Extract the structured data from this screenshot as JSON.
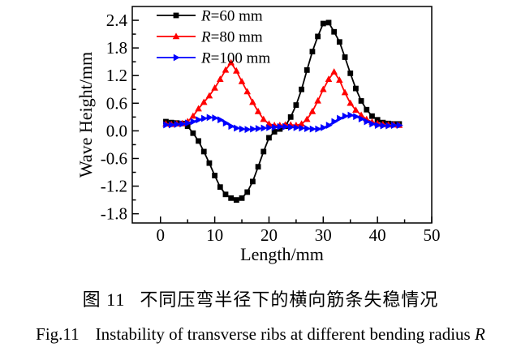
{
  "figure": {
    "caption_cn": {
      "prefix": "图 11",
      "text": "不同压弯半径下的横向筋条失稳情况"
    },
    "caption_en": {
      "prefix": "Fig.11",
      "text": "Instability of transverse ribs at different bending radius",
      "suffix_italic": "R"
    }
  },
  "chart_data": {
    "type": "line",
    "title": "",
    "xlabel": "Length/mm",
    "ylabel": "Wave Height/mm",
    "xlim": [
      -5.2,
      50
    ],
    "ylim": [
      -2.0,
      2.7
    ],
    "x_ticks_major": [
      0,
      10,
      20,
      30,
      40,
      50
    ],
    "x_ticks_minor": [
      5,
      15,
      25,
      35,
      45
    ],
    "y_ticks_major": [
      2.4,
      1.8,
      1.2,
      0.6,
      0.0,
      -0.6,
      -1.2,
      -1.8
    ],
    "y_ticks_minor": [
      2.1,
      1.5,
      0.9,
      0.3,
      -0.3,
      -0.9,
      -1.5
    ],
    "grid": false,
    "legend_position": "top-left-inside",
    "x": [
      1,
      2,
      3,
      4,
      5,
      6,
      7,
      8,
      9,
      10,
      11,
      12,
      13,
      14,
      15,
      16,
      17,
      18,
      19,
      20,
      21,
      22,
      23,
      24,
      25,
      26,
      27,
      28,
      29,
      30,
      31,
      32,
      33,
      34,
      35,
      36,
      37,
      38,
      39,
      40,
      41,
      42,
      43,
      44
    ],
    "series": [
      {
        "name": "R=60 mm",
        "color": "#000000",
        "marker": "square",
        "values": [
          0.2,
          0.18,
          0.17,
          0.16,
          0.1,
          -0.05,
          -0.22,
          -0.45,
          -0.7,
          -0.97,
          -1.22,
          -1.38,
          -1.46,
          -1.5,
          -1.46,
          -1.33,
          -1.1,
          -0.78,
          -0.45,
          -0.15,
          -0.02,
          0.04,
          0.1,
          0.3,
          0.56,
          0.9,
          1.32,
          1.72,
          2.05,
          2.33,
          2.35,
          2.15,
          1.93,
          1.6,
          1.25,
          0.92,
          0.65,
          0.46,
          0.32,
          0.24,
          0.18,
          0.16,
          0.15,
          0.15
        ]
      },
      {
        "name": "R=80 mm",
        "color": "#ff0000",
        "marker": "triangle-up",
        "values": [
          0.15,
          0.14,
          0.15,
          0.16,
          0.2,
          0.32,
          0.48,
          0.62,
          0.76,
          0.93,
          1.12,
          1.32,
          1.48,
          1.3,
          1.07,
          0.85,
          0.62,
          0.42,
          0.25,
          0.15,
          0.12,
          0.12,
          0.13,
          0.13,
          0.12,
          0.15,
          0.25,
          0.42,
          0.65,
          0.9,
          1.12,
          1.28,
          1.1,
          0.83,
          0.6,
          0.45,
          0.34,
          0.25,
          0.19,
          0.16,
          0.14,
          0.13,
          0.13,
          0.12
        ]
      },
      {
        "name": "R=100 mm",
        "color": "#0000ff",
        "marker": "triangle-right",
        "values": [
          0.13,
          0.13,
          0.14,
          0.15,
          0.17,
          0.2,
          0.24,
          0.27,
          0.29,
          0.28,
          0.24,
          0.17,
          0.1,
          0.06,
          0.04,
          0.03,
          0.04,
          0.05,
          0.06,
          0.07,
          0.08,
          0.09,
          0.09,
          0.08,
          0.07,
          0.06,
          0.05,
          0.04,
          0.04,
          0.07,
          0.12,
          0.2,
          0.27,
          0.32,
          0.34,
          0.31,
          0.26,
          0.2,
          0.15,
          0.12,
          0.11,
          0.11,
          0.12,
          0.12
        ]
      }
    ]
  }
}
